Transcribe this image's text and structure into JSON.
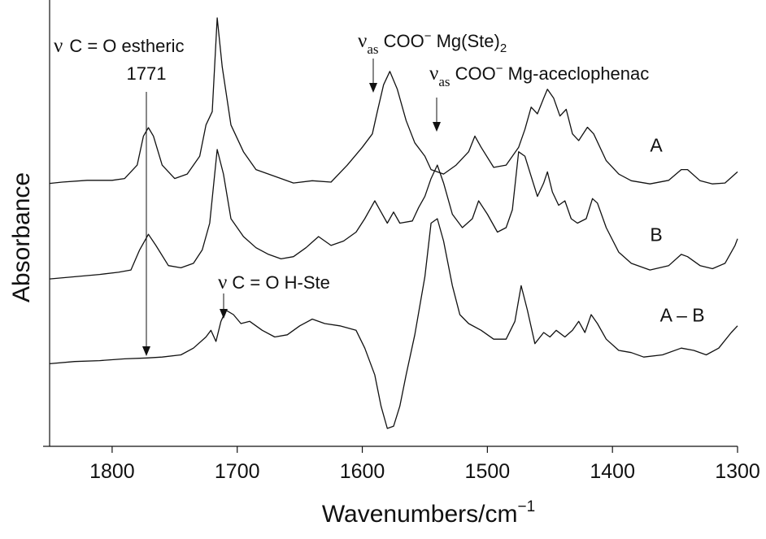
{
  "chart_data": {
    "type": "line",
    "xlabel": "Wavenumbers/cm",
    "xlabel_sup": "−1",
    "ylabel": "Absorbance",
    "xlim": [
      1850,
      1300
    ],
    "x_reversed": true,
    "ylim": [
      0,
      10
    ],
    "grid": false,
    "x_ticks": [
      1800,
      1700,
      1600,
      1500,
      1400,
      1300
    ],
    "series": [
      {
        "name": "A",
        "points": [
          [
            1850,
            5.89
          ],
          [
            1840,
            5.92
          ],
          [
            1820,
            5.96
          ],
          [
            1800,
            5.96
          ],
          [
            1790,
            6.0
          ],
          [
            1780,
            6.3
          ],
          [
            1775,
            6.95
          ],
          [
            1771,
            7.14
          ],
          [
            1767,
            6.95
          ],
          [
            1760,
            6.3
          ],
          [
            1750,
            6.0
          ],
          [
            1740,
            6.1
          ],
          [
            1730,
            6.5
          ],
          [
            1725,
            7.2
          ],
          [
            1720,
            7.5
          ],
          [
            1716,
            9.6
          ],
          [
            1712,
            8.5
          ],
          [
            1705,
            7.2
          ],
          [
            1695,
            6.6
          ],
          [
            1685,
            6.2
          ],
          [
            1670,
            6.05
          ],
          [
            1655,
            5.9
          ],
          [
            1640,
            5.95
          ],
          [
            1625,
            5.92
          ],
          [
            1612,
            6.3
          ],
          [
            1600,
            6.7
          ],
          [
            1592,
            7.0
          ],
          [
            1588,
            7.5
          ],
          [
            1583,
            8.1
          ],
          [
            1578,
            8.4
          ],
          [
            1572,
            8.0
          ],
          [
            1565,
            7.3
          ],
          [
            1558,
            6.8
          ],
          [
            1550,
            6.5
          ],
          [
            1545,
            6.2
          ],
          [
            1535,
            6.1
          ],
          [
            1525,
            6.3
          ],
          [
            1515,
            6.6
          ],
          [
            1510,
            6.95
          ],
          [
            1505,
            6.7
          ],
          [
            1495,
            6.25
          ],
          [
            1485,
            6.3
          ],
          [
            1475,
            6.7
          ],
          [
            1470,
            7.1
          ],
          [
            1465,
            7.6
          ],
          [
            1460,
            7.45
          ],
          [
            1455,
            7.8
          ],
          [
            1452,
            8.0
          ],
          [
            1447,
            7.8
          ],
          [
            1442,
            7.4
          ],
          [
            1437,
            7.55
          ],
          [
            1432,
            7.0
          ],
          [
            1427,
            6.85
          ],
          [
            1420,
            7.15
          ],
          [
            1415,
            7.0
          ],
          [
            1405,
            6.4
          ],
          [
            1395,
            6.1
          ],
          [
            1385,
            5.95
          ],
          [
            1370,
            5.88
          ],
          [
            1355,
            5.96
          ],
          [
            1345,
            6.2
          ],
          [
            1340,
            6.2
          ],
          [
            1330,
            5.95
          ],
          [
            1320,
            5.88
          ],
          [
            1310,
            5.9
          ],
          [
            1302,
            6.1
          ],
          [
            1300,
            6.15
          ]
        ]
      },
      {
        "name": "B",
        "points": [
          [
            1850,
            3.75
          ],
          [
            1830,
            3.8
          ],
          [
            1810,
            3.85
          ],
          [
            1795,
            3.9
          ],
          [
            1785,
            3.95
          ],
          [
            1778,
            4.4
          ],
          [
            1771,
            4.75
          ],
          [
            1765,
            4.5
          ],
          [
            1755,
            4.05
          ],
          [
            1745,
            4.0
          ],
          [
            1735,
            4.1
          ],
          [
            1728,
            4.4
          ],
          [
            1722,
            5.0
          ],
          [
            1716,
            6.65
          ],
          [
            1711,
            6.1
          ],
          [
            1705,
            5.1
          ],
          [
            1695,
            4.7
          ],
          [
            1685,
            4.45
          ],
          [
            1675,
            4.3
          ],
          [
            1665,
            4.2
          ],
          [
            1655,
            4.25
          ],
          [
            1645,
            4.45
          ],
          [
            1635,
            4.7
          ],
          [
            1625,
            4.5
          ],
          [
            1615,
            4.6
          ],
          [
            1605,
            4.8
          ],
          [
            1598,
            5.1
          ],
          [
            1590,
            5.5
          ],
          [
            1585,
            5.25
          ],
          [
            1580,
            5.0
          ],
          [
            1575,
            5.25
          ],
          [
            1570,
            5.0
          ],
          [
            1560,
            5.05
          ],
          [
            1555,
            5.35
          ],
          [
            1550,
            5.6
          ],
          [
            1545,
            6.0
          ],
          [
            1540,
            6.3
          ],
          [
            1535,
            5.9
          ],
          [
            1528,
            5.2
          ],
          [
            1520,
            4.9
          ],
          [
            1512,
            5.1
          ],
          [
            1507,
            5.5
          ],
          [
            1500,
            5.2
          ],
          [
            1492,
            4.8
          ],
          [
            1485,
            4.9
          ],
          [
            1480,
            5.3
          ],
          [
            1475,
            6.6
          ],
          [
            1470,
            6.5
          ],
          [
            1465,
            6.05
          ],
          [
            1460,
            5.6
          ],
          [
            1455,
            5.9
          ],
          [
            1452,
            6.15
          ],
          [
            1448,
            5.7
          ],
          [
            1443,
            5.4
          ],
          [
            1438,
            5.5
          ],
          [
            1433,
            5.1
          ],
          [
            1428,
            5.0
          ],
          [
            1421,
            5.1
          ],
          [
            1416,
            5.55
          ],
          [
            1412,
            5.45
          ],
          [
            1405,
            4.9
          ],
          [
            1395,
            4.35
          ],
          [
            1385,
            4.1
          ],
          [
            1370,
            3.95
          ],
          [
            1355,
            4.05
          ],
          [
            1345,
            4.3
          ],
          [
            1340,
            4.25
          ],
          [
            1330,
            4.05
          ],
          [
            1320,
            3.98
          ],
          [
            1310,
            4.1
          ],
          [
            1302,
            4.5
          ],
          [
            1300,
            4.65
          ]
        ]
      },
      {
        "name": "A – B",
        "points": [
          [
            1850,
            1.85
          ],
          [
            1830,
            1.9
          ],
          [
            1810,
            1.92
          ],
          [
            1790,
            1.96
          ],
          [
            1772,
            1.98
          ],
          [
            1760,
            2.0
          ],
          [
            1745,
            2.05
          ],
          [
            1735,
            2.2
          ],
          [
            1725,
            2.45
          ],
          [
            1721,
            2.6
          ],
          [
            1717,
            2.35
          ],
          [
            1713,
            2.8
          ],
          [
            1709,
            3.05
          ],
          [
            1703,
            2.95
          ],
          [
            1697,
            2.75
          ],
          [
            1690,
            2.8
          ],
          [
            1680,
            2.6
          ],
          [
            1670,
            2.45
          ],
          [
            1660,
            2.5
          ],
          [
            1650,
            2.7
          ],
          [
            1640,
            2.85
          ],
          [
            1630,
            2.75
          ],
          [
            1618,
            2.7
          ],
          [
            1605,
            2.6
          ],
          [
            1598,
            2.2
          ],
          [
            1590,
            1.6
          ],
          [
            1585,
            0.9
          ],
          [
            1580,
            0.4
          ],
          [
            1575,
            0.45
          ],
          [
            1570,
            0.9
          ],
          [
            1565,
            1.6
          ],
          [
            1558,
            2.5
          ],
          [
            1550,
            3.8
          ],
          [
            1545,
            5.0
          ],
          [
            1540,
            5.1
          ],
          [
            1535,
            4.6
          ],
          [
            1528,
            3.6
          ],
          [
            1522,
            2.95
          ],
          [
            1515,
            2.75
          ],
          [
            1505,
            2.6
          ],
          [
            1495,
            2.4
          ],
          [
            1485,
            2.4
          ],
          [
            1478,
            2.8
          ],
          [
            1473,
            3.6
          ],
          [
            1468,
            3.05
          ],
          [
            1462,
            2.3
          ],
          [
            1455,
            2.55
          ],
          [
            1450,
            2.45
          ],
          [
            1445,
            2.6
          ],
          [
            1438,
            2.45
          ],
          [
            1432,
            2.6
          ],
          [
            1427,
            2.8
          ],
          [
            1422,
            2.55
          ],
          [
            1417,
            2.95
          ],
          [
            1412,
            2.75
          ],
          [
            1405,
            2.4
          ],
          [
            1395,
            2.15
          ],
          [
            1385,
            2.1
          ],
          [
            1375,
            2.0
          ],
          [
            1360,
            2.05
          ],
          [
            1345,
            2.2
          ],
          [
            1335,
            2.15
          ],
          [
            1325,
            2.05
          ],
          [
            1315,
            2.2
          ],
          [
            1305,
            2.55
          ],
          [
            1300,
            2.7
          ]
        ]
      }
    ],
    "series_labels": [
      {
        "text": "A",
        "at": [
          1370,
          6.6
        ]
      },
      {
        "text": "B",
        "at": [
          1370,
          4.6
        ]
      },
      {
        "text": "A – B",
        "at": [
          1362,
          2.8
        ]
      }
    ],
    "annotations": [
      {
        "id": "c-o-estheric",
        "nu": "ν",
        "line1": "C = O estheric",
        "line2": "1771",
        "x": 1771
      },
      {
        "id": "vas-mg-ste",
        "nu": "ν",
        "sub": "as",
        "label": " COO",
        "sup": "−",
        "label2": " Mg(Ste)",
        "sub2": "2",
        "x": 1589
      },
      {
        "id": "vas-mg-aceclofenac",
        "nu": "ν",
        "sub": "as",
        "label": " COO",
        "sup": "−",
        "label2": " Mg-aceclophenac",
        "x": 1540
      },
      {
        "id": "c-o-h-ste",
        "nu": "ν",
        "label": " C = O H-Ste",
        "x": 1709
      }
    ]
  }
}
